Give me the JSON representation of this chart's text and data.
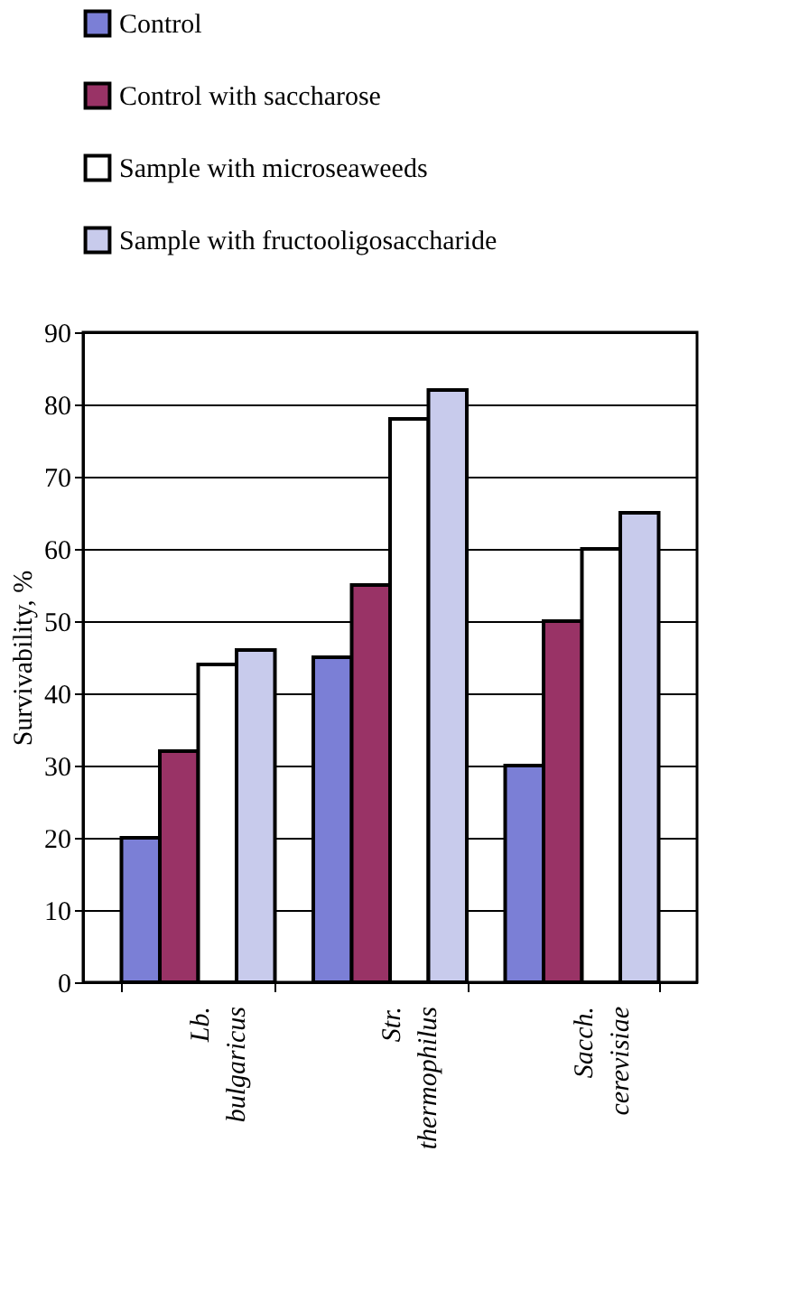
{
  "chart_data": {
    "type": "bar",
    "ylabel": "Survivability, %",
    "categories": [
      "Lb. bulgaricus",
      "Str. thermophilus",
      "Sacch. cerevisiae"
    ],
    "series": [
      {
        "name": "Control",
        "color": "#7b7fd6",
        "values": [
          20,
          45,
          30
        ]
      },
      {
        "name": "Control with  saccharose",
        "color": "#993366",
        "values": [
          32,
          55,
          50
        ]
      },
      {
        "name": "Sample with  microseaweeds",
        "color": "#ffffff",
        "values": [
          44,
          78,
          60
        ]
      },
      {
        "name": "Sample with  fructooligosaccharide",
        "color": "#c8cbec",
        "values": [
          46,
          82,
          65
        ]
      }
    ],
    "ylim": [
      0,
      90
    ],
    "yticks": [
      0,
      10,
      20,
      30,
      40,
      50,
      60,
      70,
      80,
      90
    ],
    "grid": "y",
    "legend": "top"
  }
}
